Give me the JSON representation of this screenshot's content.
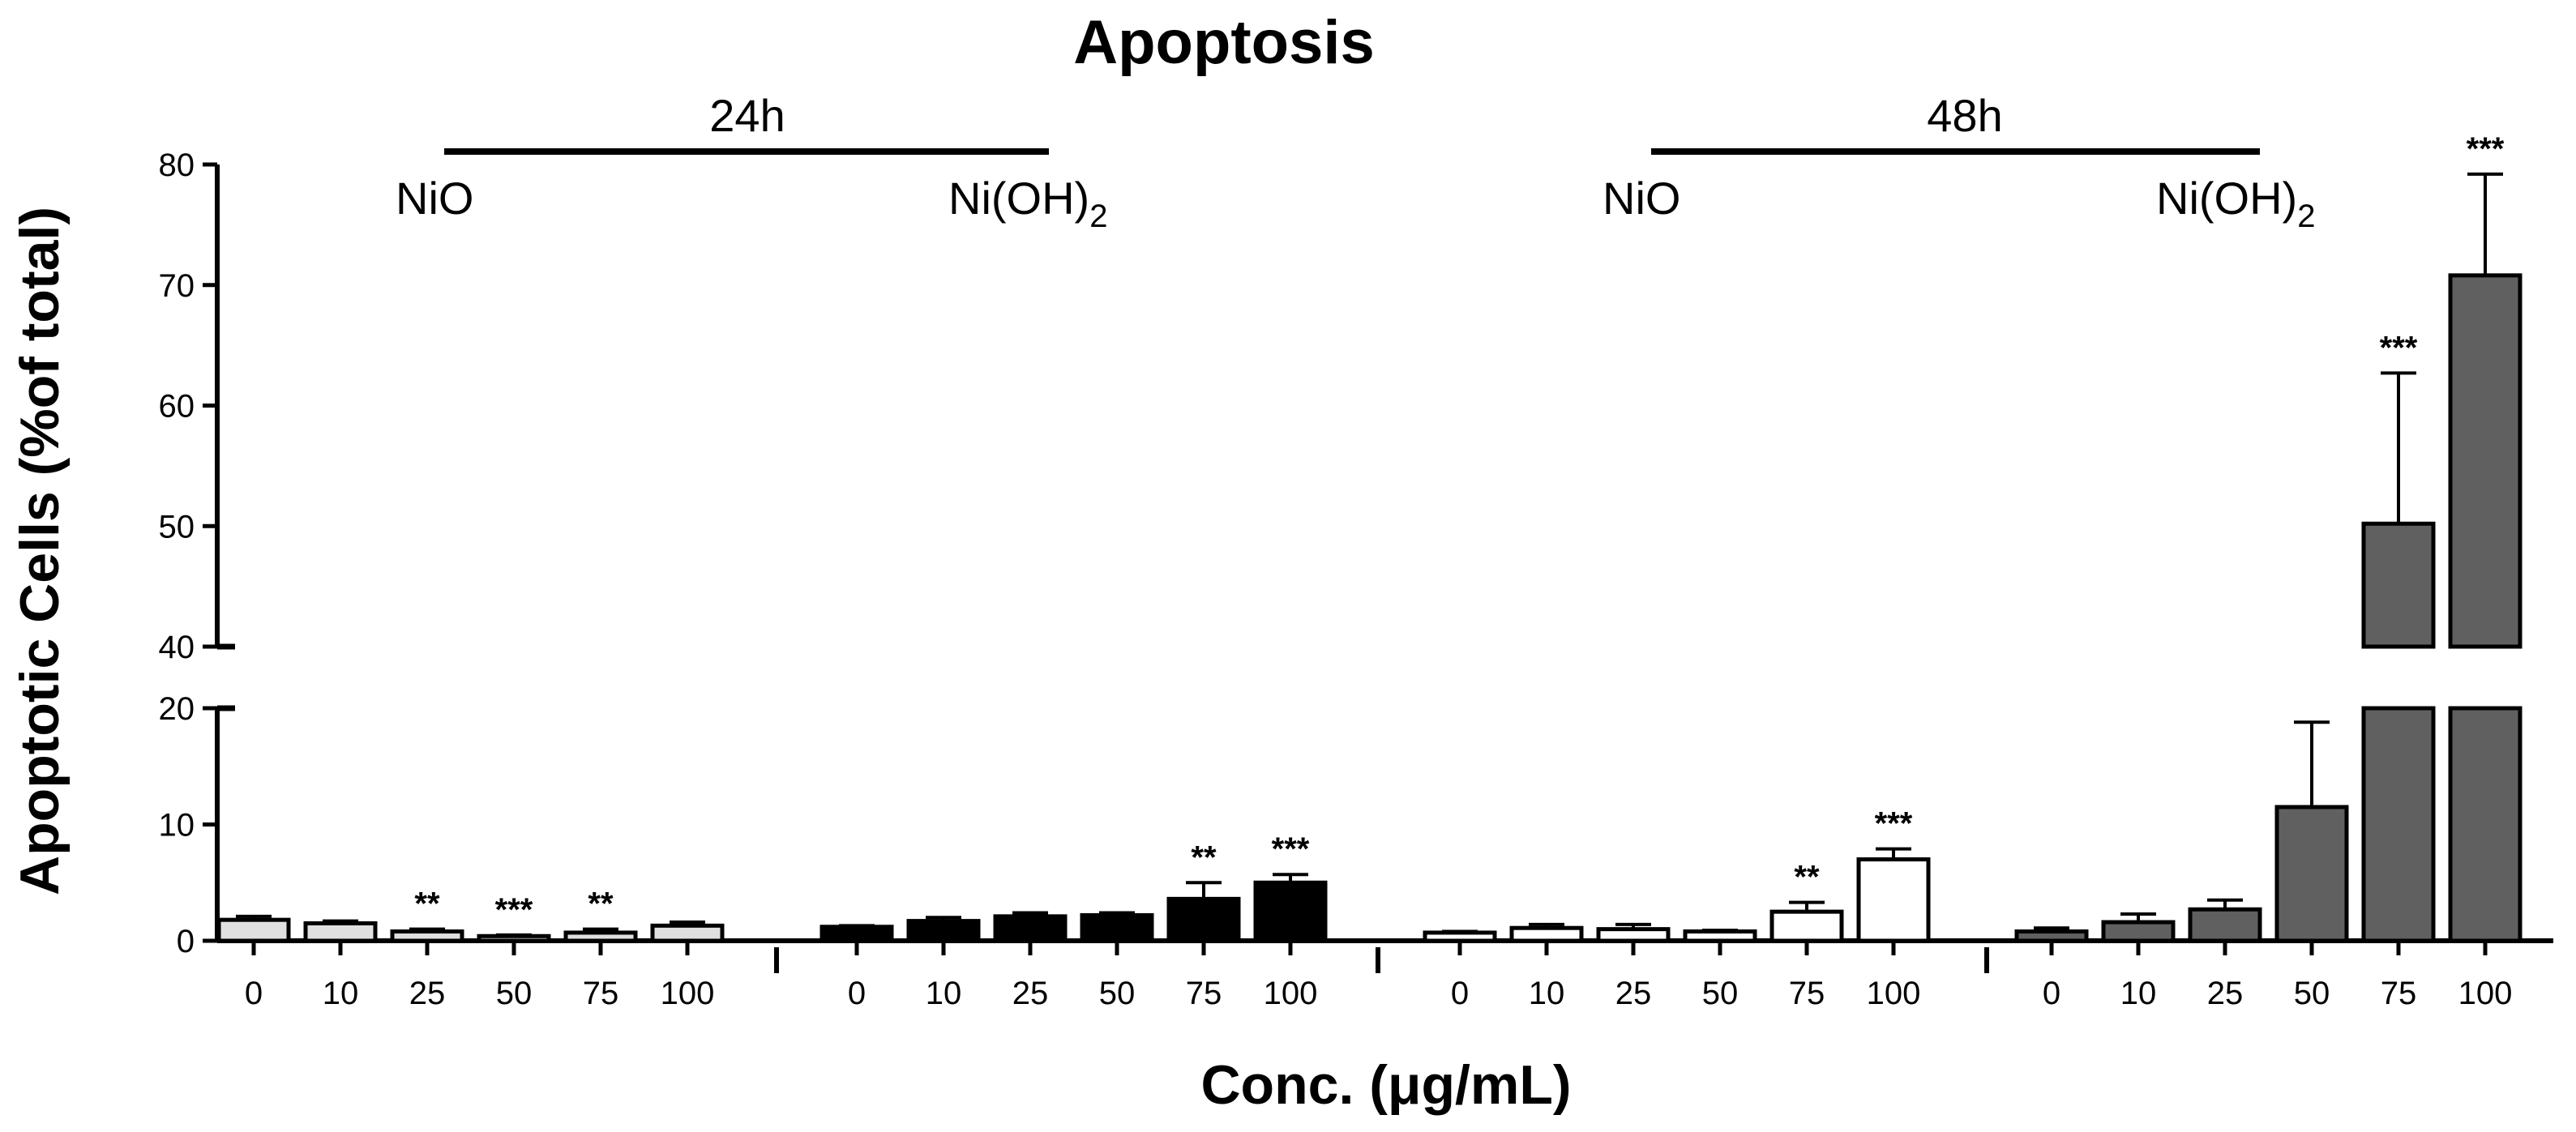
{
  "chart_data": {
    "type": "bar",
    "title": "Apoptosis",
    "xlabel": "Conc. (μg/mL)",
    "ylabel": "Apoptotic Cells (%of total)",
    "y_axis_break": {
      "lower_range": [
        0,
        20
      ],
      "upper_range": [
        40,
        80
      ]
    },
    "yticks_lower": [
      "0",
      "10",
      "20"
    ],
    "yticks_upper": [
      "40",
      "50",
      "60",
      "70",
      "80"
    ],
    "time_labels": [
      "24h",
      "48h"
    ],
    "compound_labels": {
      "left": "NiO",
      "right_main": "Ni(OH)",
      "right_sub": "2"
    },
    "categories": [
      "0",
      "10",
      "25",
      "50",
      "75",
      "100"
    ],
    "series": [
      {
        "values": [
          1.8,
          1.5,
          0.8,
          0.4,
          0.7,
          1.3
        ],
        "errors": [
          0.3,
          0.2,
          0.2,
          0.1,
          0.3,
          0.3
        ],
        "sig": [
          "",
          "",
          "**",
          "***",
          "**",
          ""
        ],
        "fill": "#e0e0e0"
      },
      {
        "values": [
          1.2,
          1.7,
          2.1,
          2.2,
          3.6,
          5.0
        ],
        "errors": [
          0.1,
          0.3,
          0.3,
          0.2,
          1.4,
          0.7
        ],
        "sig": [
          "",
          "",
          "",
          "",
          "**",
          "***"
        ],
        "fill": "#000000"
      },
      {
        "values": [
          0.7,
          1.1,
          1.0,
          0.8,
          2.5,
          7.0
        ],
        "errors": [
          0.1,
          0.3,
          0.4,
          0.1,
          0.8,
          0.9
        ],
        "sig": [
          "",
          "",
          "",
          "",
          "**",
          "***"
        ],
        "fill": "#ffffff"
      },
      {
        "values": [
          0.8,
          1.6,
          2.7,
          11.5,
          50.2,
          70.8
        ],
        "errors": [
          0.3,
          0.7,
          0.8,
          7.3,
          12.5,
          8.4
        ],
        "sig": [
          "",
          "",
          "",
          "",
          "***",
          "***"
        ],
        "fill": "#606060"
      }
    ]
  }
}
